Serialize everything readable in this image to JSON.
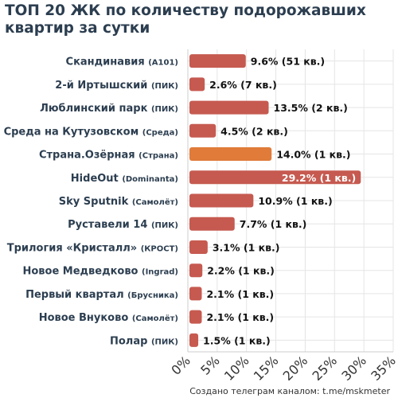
{
  "title": "ТОП 20 ЖК по количеству подорожавших квартир за сутки",
  "footer": "Создано телеграм каналом: t.me/mskmeter",
  "colors": {
    "bar": "#c65a50",
    "highlight": "#e07b39",
    "text": "#2c3e50",
    "grid": "#e5e5e5"
  },
  "chart_data": {
    "type": "bar",
    "orientation": "horizontal",
    "title": "ТОП 20 ЖК по количеству подорожавших квартир за сутки",
    "xlabel": "",
    "ylabel": "",
    "xlim": [
      0,
      35
    ],
    "x_ticks": [
      "0%",
      "5%",
      "10%",
      "15%",
      "20%",
      "25%",
      "30%",
      "35%"
    ],
    "grid": true,
    "categories": [
      {
        "name": "Скандинавия",
        "developer": "(А101)"
      },
      {
        "name": "2-й Иртышский",
        "developer": "(ПИК)"
      },
      {
        "name": "Люблинский парк",
        "developer": "(ПИК)"
      },
      {
        "name": "Среда на Кутузовском",
        "developer": "(Среда)"
      },
      {
        "name": "Страна.Озёрная",
        "developer": "(Страна)"
      },
      {
        "name": "HideOut",
        "developer": "(Dominanta)"
      },
      {
        "name": "Sky Sputnik",
        "developer": "(Самолёт)"
      },
      {
        "name": "Руставели 14",
        "developer": "(ПИК)"
      },
      {
        "name": "Трилогия «Кристалл»",
        "developer": "(КРОСТ)"
      },
      {
        "name": "Новое Медведково",
        "developer": "(Ingrad)"
      },
      {
        "name": "Первый квартал",
        "developer": "(Брусника)"
      },
      {
        "name": "Новое Внуково",
        "developer": "(Самолёт)"
      },
      {
        "name": "Полар",
        "developer": "(ПИК)"
      }
    ],
    "values": [
      9.6,
      2.6,
      13.5,
      4.5,
      14.0,
      29.2,
      10.9,
      7.7,
      3.1,
      2.2,
      2.1,
      2.1,
      1.5
    ],
    "labels": [
      "9.6% (51 кв.)",
      "2.6% (7 кв.)",
      "13.5% (2 кв.)",
      "4.5% (2 кв.)",
      "14.0% (1 кв.)",
      "29.2% (1 кв.)",
      "10.9% (1 кв.)",
      "7.7% (1 кв.)",
      "3.1% (1 кв.)",
      "2.2% (1 кв.)",
      "2.1% (1 кв.)",
      "2.1% (1 кв.)",
      "1.5% (1 кв.)"
    ],
    "highlight_index": 4,
    "label_inside_index": 5
  }
}
